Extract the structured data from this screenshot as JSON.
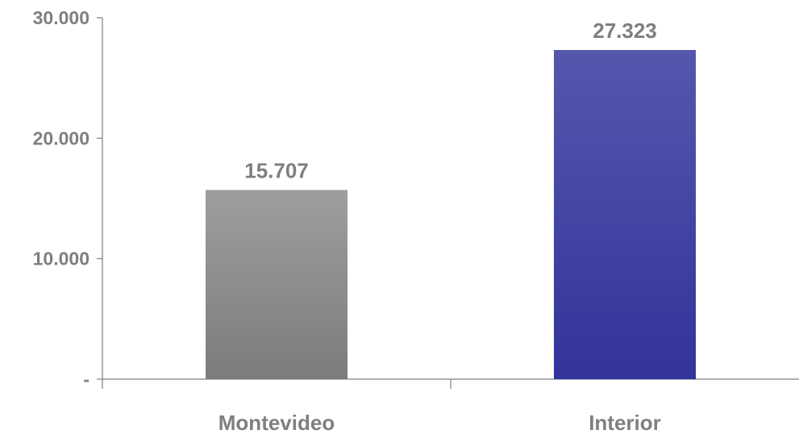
{
  "chart_data": {
    "type": "bar",
    "categories": [
      "Montevideo",
      "Interior"
    ],
    "values": [
      15707,
      27323
    ],
    "value_labels": [
      "15.707",
      "27.323"
    ],
    "ylim": [
      0,
      30000
    ],
    "y_ticks": [
      0,
      10000,
      20000,
      30000
    ],
    "y_tick_labels": [
      "-",
      "10.000",
      "20.000",
      "30.000"
    ],
    "grid": false,
    "legend": "none",
    "colors": {
      "Montevideo": [
        "#9e9e9e",
        "#7c7c7c"
      ],
      "Interior": [
        "#5557ad",
        "#33339a"
      ],
      "labels": "#7f7f7f",
      "axis": "#808080"
    }
  }
}
